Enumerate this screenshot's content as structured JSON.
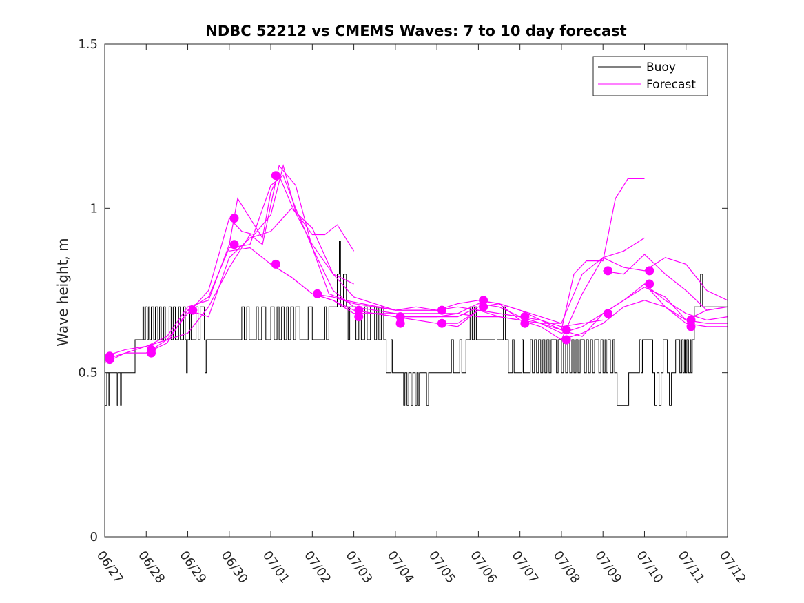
{
  "chart_data": {
    "type": "line",
    "title": "NDBC 52212 vs CMEMS Waves: 7 to 10 day forecast",
    "xlabel": "",
    "ylabel": "Wave height, m",
    "x_tick_labels": [
      "06/27",
      "06/28",
      "06/29",
      "06/30",
      "07/01",
      "07/02",
      "07/03",
      "07/04",
      "07/05",
      "07/06",
      "07/07",
      "07/08",
      "07/09",
      "07/10",
      "07/11",
      "07/12"
    ],
    "xlim": [
      0,
      15
    ],
    "ylim": [
      0,
      1.5
    ],
    "y_ticks": [
      0,
      0.5,
      1,
      1.5
    ],
    "y_tick_labels": [
      "0",
      "0.5",
      "1",
      "1.5"
    ],
    "grid": false,
    "legend": {
      "location": "top-right",
      "entries": [
        {
          "label": "Buoy",
          "color": "#000000"
        },
        {
          "label": "Forecast",
          "color": "#ff00ff"
        }
      ]
    },
    "colors": {
      "buoy": "#000000",
      "forecast": "#ff00ff"
    },
    "x_units": "days since 06/27",
    "buoy": {
      "name": "Buoy",
      "segments": [
        [
          0.0,
          0.4
        ],
        [
          0.05,
          0.5
        ],
        [
          0.1,
          0.4
        ],
        [
          0.12,
          0.5
        ],
        [
          0.3,
          0.4
        ],
        [
          0.32,
          0.5
        ],
        [
          0.38,
          0.4
        ],
        [
          0.4,
          0.5
        ],
        [
          0.73,
          0.6
        ],
        [
          0.92,
          0.7
        ],
        [
          0.94,
          0.6
        ],
        [
          0.98,
          0.7
        ],
        [
          1.02,
          0.6
        ],
        [
          1.05,
          0.7
        ],
        [
          1.08,
          0.6
        ],
        [
          1.12,
          0.7
        ],
        [
          1.18,
          0.6
        ],
        [
          1.22,
          0.7
        ],
        [
          1.28,
          0.6
        ],
        [
          1.32,
          0.7
        ],
        [
          1.36,
          0.6
        ],
        [
          1.42,
          0.7
        ],
        [
          1.46,
          0.6
        ],
        [
          1.55,
          0.7
        ],
        [
          1.6,
          0.6
        ],
        [
          1.65,
          0.7
        ],
        [
          1.7,
          0.6
        ],
        [
          1.78,
          0.7
        ],
        [
          1.82,
          0.6
        ],
        [
          1.9,
          0.7
        ],
        [
          1.94,
          0.6
        ],
        [
          1.97,
          0.5
        ],
        [
          1.99,
          0.6
        ],
        [
          2.05,
          0.7
        ],
        [
          2.08,
          0.6
        ],
        [
          2.2,
          0.7
        ],
        [
          2.25,
          0.6
        ],
        [
          2.3,
          0.7
        ],
        [
          2.4,
          0.6
        ],
        [
          2.42,
          0.5
        ],
        [
          2.45,
          0.6
        ],
        [
          3.3,
          0.7
        ],
        [
          3.36,
          0.6
        ],
        [
          3.42,
          0.7
        ],
        [
          3.48,
          0.6
        ],
        [
          3.65,
          0.7
        ],
        [
          3.7,
          0.6
        ],
        [
          3.78,
          0.7
        ],
        [
          3.88,
          0.6
        ],
        [
          4.0,
          0.7
        ],
        [
          4.08,
          0.6
        ],
        [
          4.15,
          0.7
        ],
        [
          4.2,
          0.6
        ],
        [
          4.26,
          0.7
        ],
        [
          4.32,
          0.6
        ],
        [
          4.38,
          0.7
        ],
        [
          4.42,
          0.6
        ],
        [
          4.48,
          0.7
        ],
        [
          4.55,
          0.6
        ],
        [
          4.6,
          0.7
        ],
        [
          4.7,
          0.6
        ],
        [
          4.9,
          0.7
        ],
        [
          5.0,
          0.6
        ],
        [
          5.3,
          0.7
        ],
        [
          5.34,
          0.6
        ],
        [
          5.4,
          0.7
        ],
        [
          5.6,
          0.8
        ],
        [
          5.65,
          0.9
        ],
        [
          5.68,
          0.7
        ],
        [
          5.75,
          0.8
        ],
        [
          5.82,
          0.7
        ],
        [
          5.86,
          0.6
        ],
        [
          5.9,
          0.7
        ],
        [
          6.05,
          0.6
        ],
        [
          6.12,
          0.7
        ],
        [
          6.18,
          0.6
        ],
        [
          6.26,
          0.7
        ],
        [
          6.32,
          0.6
        ],
        [
          6.4,
          0.7
        ],
        [
          6.5,
          0.6
        ],
        [
          6.55,
          0.7
        ],
        [
          6.6,
          0.6
        ],
        [
          6.66,
          0.7
        ],
        [
          6.72,
          0.6
        ],
        [
          6.78,
          0.5
        ],
        [
          6.9,
          0.6
        ],
        [
          6.93,
          0.5
        ],
        [
          7.2,
          0.4
        ],
        [
          7.23,
          0.5
        ],
        [
          7.28,
          0.4
        ],
        [
          7.32,
          0.5
        ],
        [
          7.38,
          0.4
        ],
        [
          7.42,
          0.5
        ],
        [
          7.48,
          0.4
        ],
        [
          7.52,
          0.5
        ],
        [
          7.55,
          0.4
        ],
        [
          7.58,
          0.5
        ],
        [
          7.75,
          0.4
        ],
        [
          7.8,
          0.5
        ],
        [
          8.35,
          0.6
        ],
        [
          8.4,
          0.5
        ],
        [
          8.55,
          0.6
        ],
        [
          8.6,
          0.5
        ],
        [
          8.7,
          0.6
        ],
        [
          8.8,
          0.7
        ],
        [
          8.85,
          0.6
        ],
        [
          8.9,
          0.7
        ],
        [
          8.95,
          0.6
        ],
        [
          9.4,
          0.7
        ],
        [
          9.45,
          0.6
        ],
        [
          9.6,
          0.7
        ],
        [
          9.65,
          0.6
        ],
        [
          9.72,
          0.5
        ],
        [
          9.82,
          0.6
        ],
        [
          9.86,
          0.5
        ],
        [
          10.05,
          0.6
        ],
        [
          10.08,
          0.5
        ],
        [
          10.25,
          0.6
        ],
        [
          10.3,
          0.5
        ],
        [
          10.35,
          0.6
        ],
        [
          10.4,
          0.5
        ],
        [
          10.45,
          0.6
        ],
        [
          10.5,
          0.5
        ],
        [
          10.55,
          0.6
        ],
        [
          10.6,
          0.5
        ],
        [
          10.65,
          0.6
        ],
        [
          10.7,
          0.5
        ],
        [
          10.75,
          0.6
        ],
        [
          10.88,
          0.5
        ],
        [
          10.92,
          0.6
        ],
        [
          11.0,
          0.5
        ],
        [
          11.05,
          0.6
        ],
        [
          11.1,
          0.5
        ],
        [
          11.15,
          0.6
        ],
        [
          11.2,
          0.5
        ],
        [
          11.25,
          0.6
        ],
        [
          11.3,
          0.5
        ],
        [
          11.35,
          0.6
        ],
        [
          11.4,
          0.5
        ],
        [
          11.45,
          0.6
        ],
        [
          11.55,
          0.5
        ],
        [
          11.6,
          0.6
        ],
        [
          11.65,
          0.5
        ],
        [
          11.7,
          0.6
        ],
        [
          11.75,
          0.5
        ],
        [
          11.8,
          0.6
        ],
        [
          11.9,
          0.5
        ],
        [
          11.95,
          0.6
        ],
        [
          12.0,
          0.5
        ],
        [
          12.05,
          0.6
        ],
        [
          12.08,
          0.5
        ],
        [
          12.12,
          0.6
        ],
        [
          12.18,
          0.5
        ],
        [
          12.24,
          0.6
        ],
        [
          12.28,
          0.5
        ],
        [
          12.34,
          0.4
        ],
        [
          12.6,
          0.4
        ],
        [
          12.62,
          0.5
        ],
        [
          12.88,
          0.6
        ],
        [
          12.92,
          0.5
        ],
        [
          12.95,
          0.6
        ],
        [
          13.2,
          0.5
        ],
        [
          13.25,
          0.4
        ],
        [
          13.3,
          0.5
        ],
        [
          13.35,
          0.4
        ],
        [
          13.4,
          0.5
        ],
        [
          13.45,
          0.6
        ],
        [
          13.55,
          0.5
        ],
        [
          13.6,
          0.4
        ],
        [
          13.65,
          0.5
        ],
        [
          13.75,
          0.6
        ],
        [
          13.85,
          0.5
        ],
        [
          13.9,
          0.6
        ],
        [
          13.93,
          0.5
        ],
        [
          13.96,
          0.6
        ],
        [
          13.98,
          0.5
        ],
        [
          14.02,
          0.6
        ],
        [
          14.06,
          0.5
        ],
        [
          14.1,
          0.6
        ],
        [
          14.12,
          0.5
        ],
        [
          14.15,
          0.6
        ],
        [
          14.2,
          0.7
        ],
        [
          14.35,
          0.8
        ],
        [
          14.4,
          0.7
        ],
        [
          14.5,
          0.7
        ],
        [
          14.55,
          0.7
        ],
        [
          15.0,
          0.7
        ]
      ]
    },
    "forecast_series": [
      {
        "x": [
          0.0,
          0.5,
          1.0,
          1.5,
          2.0,
          2.5,
          3.0,
          3.3,
          3.6,
          4.0,
          4.3,
          4.6,
          5.0,
          5.3,
          5.6,
          6.0
        ],
        "y": [
          0.55,
          0.57,
          0.58,
          0.6,
          0.68,
          0.75,
          0.97,
          0.93,
          0.92,
          0.98,
          1.13,
          0.99,
          0.92,
          0.92,
          0.95,
          0.87
        ]
      },
      {
        "x": [
          0.0,
          0.5,
          1.0,
          1.5,
          2.0,
          2.5,
          3.0,
          3.2,
          3.5,
          3.8,
          4.0,
          4.2,
          4.5,
          5.0,
          5.5,
          6.0
        ],
        "y": [
          0.54,
          0.56,
          0.58,
          0.61,
          0.7,
          0.72,
          0.89,
          1.03,
          0.97,
          0.91,
          1.05,
          1.1,
          1.01,
          0.89,
          0.8,
          0.77
        ]
      },
      {
        "x": [
          0.0,
          0.5,
          1.0,
          1.5,
          2.0,
          2.5,
          3.0,
          3.5,
          4.0,
          4.3,
          4.6,
          5.0,
          5.5,
          6.0,
          6.5,
          7.0
        ],
        "y": [
          0.53,
          0.56,
          0.56,
          0.59,
          0.69,
          0.73,
          0.88,
          0.89,
          1.07,
          1.1,
          1.0,
          0.88,
          0.75,
          0.7,
          0.69,
          0.68
        ]
      },
      {
        "x": [
          1.0,
          1.5,
          2.0,
          2.5,
          3.0,
          3.5,
          3.8,
          4.2,
          4.6,
          5.0,
          5.4,
          5.8,
          6.2,
          6.6,
          7.0,
          7.5,
          8.0
        ],
        "y": [
          0.56,
          0.6,
          0.62,
          0.7,
          0.82,
          0.92,
          0.89,
          1.13,
          1.07,
          0.88,
          0.74,
          0.72,
          0.71,
          0.7,
          0.69,
          0.7,
          0.69
        ]
      },
      {
        "x": [
          2.0,
          2.5,
          3.0,
          3.5,
          4.0,
          4.5,
          5.0,
          5.5,
          6.0,
          6.5,
          7.0,
          7.5,
          8.0,
          8.5,
          9.0
        ],
        "y": [
          0.69,
          0.67,
          0.85,
          0.91,
          0.93,
          1.0,
          0.94,
          0.8,
          0.73,
          0.71,
          0.69,
          0.69,
          0.69,
          0.7,
          0.69
        ]
      },
      {
        "x": [
          3.0,
          3.5,
          4.0,
          4.5,
          5.0,
          5.5,
          6.0,
          6.5,
          7.0,
          7.5,
          8.0,
          8.5,
          9.0,
          9.5,
          10.0
        ],
        "y": [
          0.87,
          0.88,
          0.83,
          0.79,
          0.74,
          0.72,
          0.69,
          0.68,
          0.68,
          0.68,
          0.68,
          0.68,
          0.67,
          0.67,
          0.66
        ]
      },
      {
        "x": [
          4.0,
          4.5,
          5.0,
          5.5,
          6.0,
          6.5,
          7.0,
          7.5,
          8.0,
          8.5,
          9.0,
          9.5,
          10.0,
          10.5,
          11.0
        ],
        "y": [
          0.83,
          0.79,
          0.74,
          0.73,
          0.71,
          0.7,
          0.69,
          0.69,
          0.69,
          0.71,
          0.72,
          0.71,
          0.69,
          0.67,
          0.65
        ]
      },
      {
        "x": [
          5.0,
          5.5,
          6.0,
          6.5,
          7.0,
          7.5,
          8.0,
          8.5,
          9.0,
          9.5,
          10.0,
          10.5,
          11.0,
          11.5,
          12.0
        ],
        "y": [
          0.74,
          0.72,
          0.68,
          0.68,
          0.67,
          0.67,
          0.67,
          0.67,
          0.7,
          0.71,
          0.69,
          0.66,
          0.64,
          0.65,
          0.66
        ]
      },
      {
        "x": [
          6.0,
          6.5,
          7.0,
          7.5,
          8.0,
          8.5,
          9.0,
          9.5,
          10.0,
          10.5,
          11.0,
          11.5,
          12.0,
          12.5,
          13.0
        ],
        "y": [
          0.68,
          0.68,
          0.67,
          0.67,
          0.67,
          0.68,
          0.71,
          0.7,
          0.67,
          0.65,
          0.65,
          0.8,
          0.85,
          0.87,
          0.91
        ]
      },
      {
        "x": [
          7.0,
          7.5,
          8.0,
          8.5,
          9.0,
          9.5,
          10.0,
          10.5,
          11.0,
          11.3,
          11.6,
          12.0,
          12.3,
          12.6,
          13.0
        ],
        "y": [
          0.67,
          0.66,
          0.65,
          0.64,
          0.69,
          0.68,
          0.67,
          0.66,
          0.63,
          0.8,
          0.84,
          0.84,
          1.03,
          1.09,
          1.09
        ]
      },
      {
        "x": [
          8.0,
          8.5,
          9.0,
          9.5,
          10.0,
          10.5,
          11.0,
          11.5,
          12.0,
          12.5,
          13.0,
          13.5,
          14.0,
          14.5,
          15.0
        ],
        "y": [
          0.65,
          0.65,
          0.69,
          0.67,
          0.66,
          0.64,
          0.6,
          0.74,
          0.85,
          0.82,
          0.81,
          0.85,
          0.83,
          0.75,
          0.72
        ]
      },
      {
        "x": [
          9.0,
          9.5,
          10.0,
          10.5,
          11.0,
          11.5,
          12.0,
          12.5,
          13.0,
          13.5,
          14.0,
          14.5,
          15.0
        ],
        "y": [
          0.72,
          0.71,
          0.66,
          0.65,
          0.62,
          0.64,
          0.68,
          0.72,
          0.77,
          0.7,
          0.66,
          0.69,
          0.7
        ]
      },
      {
        "x": [
          10.0,
          10.5,
          11.0,
          11.5,
          12.0,
          12.5,
          13.0,
          13.5,
          14.0,
          14.5,
          15.0
        ],
        "y": [
          0.67,
          0.65,
          0.63,
          0.61,
          0.68,
          0.72,
          0.76,
          0.73,
          0.66,
          0.65,
          0.65
        ]
      },
      {
        "x": [
          11.0,
          11.5,
          12.0,
          12.5,
          13.0,
          13.5,
          14.0,
          14.5,
          15.0
        ],
        "y": [
          0.6,
          0.62,
          0.65,
          0.7,
          0.72,
          0.7,
          0.65,
          0.64,
          0.64
        ]
      },
      {
        "x": [
          12.0,
          12.5,
          13.0,
          13.5,
          14.0,
          14.5,
          15.0
        ],
        "y": [
          0.81,
          0.8,
          0.86,
          0.8,
          0.75,
          0.69,
          0.7
        ]
      },
      {
        "x": [
          13.0,
          13.5,
          14.0,
          14.5,
          15.0
        ],
        "y": [
          0.77,
          0.72,
          0.68,
          0.66,
          0.67
        ]
      }
    ],
    "markers": [
      {
        "x": 0.12,
        "y": 0.55
      },
      {
        "x": 0.12,
        "y": 0.54
      },
      {
        "x": 1.12,
        "y": 0.57
      },
      {
        "x": 1.12,
        "y": 0.56
      },
      {
        "x": 2.12,
        "y": 0.69
      },
      {
        "x": 3.12,
        "y": 0.97
      },
      {
        "x": 3.12,
        "y": 0.89
      },
      {
        "x": 4.12,
        "y": 1.1
      },
      {
        "x": 4.12,
        "y": 0.83
      },
      {
        "x": 5.12,
        "y": 0.74
      },
      {
        "x": 6.12,
        "y": 0.69
      },
      {
        "x": 6.12,
        "y": 0.67
      },
      {
        "x": 7.12,
        "y": 0.67
      },
      {
        "x": 7.12,
        "y": 0.65
      },
      {
        "x": 8.12,
        "y": 0.69
      },
      {
        "x": 8.12,
        "y": 0.65
      },
      {
        "x": 9.12,
        "y": 0.72
      },
      {
        "x": 9.12,
        "y": 0.7
      },
      {
        "x": 10.12,
        "y": 0.67
      },
      {
        "x": 10.12,
        "y": 0.65
      },
      {
        "x": 11.12,
        "y": 0.63
      },
      {
        "x": 11.12,
        "y": 0.6
      },
      {
        "x": 12.12,
        "y": 0.81
      },
      {
        "x": 12.12,
        "y": 0.68
      },
      {
        "x": 13.12,
        "y": 0.81
      },
      {
        "x": 13.12,
        "y": 0.77
      },
      {
        "x": 14.12,
        "y": 0.66
      },
      {
        "x": 14.12,
        "y": 0.64
      }
    ]
  }
}
